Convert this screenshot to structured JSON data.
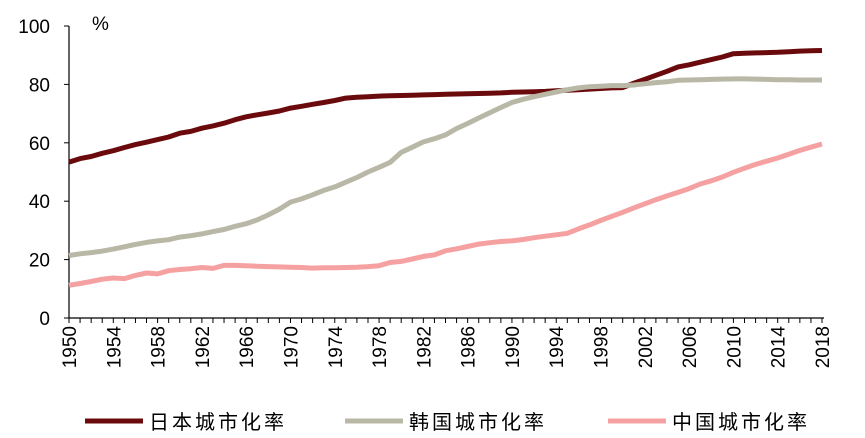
{
  "chart_data": {
    "type": "line",
    "unit_label": "%",
    "ylim": [
      0,
      100
    ],
    "yticks": [
      0,
      20,
      40,
      60,
      80,
      100
    ],
    "xlim": [
      1950,
      2018
    ],
    "xticks": [
      1950,
      1954,
      1958,
      1962,
      1966,
      1970,
      1974,
      1978,
      1982,
      1986,
      1990,
      1994,
      1998,
      2002,
      2006,
      2010,
      2014,
      2018
    ],
    "grid": false,
    "legend_position": "bottom",
    "series": [
      {
        "name": "日本城市化率",
        "color": "#6b0a0c",
        "x": [
          1950,
          1951,
          1952,
          1953,
          1954,
          1955,
          1956,
          1957,
          1958,
          1959,
          1960,
          1961,
          1962,
          1963,
          1964,
          1965,
          1966,
          1967,
          1968,
          1969,
          1970,
          1971,
          1972,
          1973,
          1974,
          1975,
          1976,
          1977,
          1978,
          1979,
          1980,
          1981,
          1982,
          1983,
          1984,
          1985,
          1986,
          1987,
          1988,
          1989,
          1990,
          1991,
          1992,
          1993,
          1994,
          1995,
          1996,
          1997,
          1998,
          1999,
          2000,
          2001,
          2002,
          2003,
          2004,
          2005,
          2006,
          2007,
          2008,
          2009,
          2010,
          2011,
          2012,
          2013,
          2014,
          2015,
          2016,
          2017,
          2018
        ],
        "values": [
          53.4,
          54.6,
          55.3,
          56.4,
          57.3,
          58.4,
          59.4,
          60.2,
          61.1,
          62.0,
          63.3,
          63.9,
          65.0,
          65.8,
          66.7,
          67.9,
          68.9,
          69.6,
          70.2,
          70.9,
          71.9,
          72.5,
          73.2,
          73.8,
          74.5,
          75.3,
          75.6,
          75.8,
          76.0,
          76.1,
          76.2,
          76.3,
          76.4,
          76.5,
          76.6,
          76.7,
          76.8,
          76.9,
          77.0,
          77.1,
          77.3,
          77.4,
          77.5,
          77.6,
          77.8,
          78.0,
          78.2,
          78.4,
          78.6,
          78.8,
          78.9,
          80.4,
          81.7,
          83.1,
          84.5,
          86.0,
          86.7,
          87.6,
          88.5,
          89.4,
          90.5,
          90.7,
          90.8,
          90.9,
          91.0,
          91.2,
          91.4,
          91.5,
          91.6
        ]
      },
      {
        "name": "韩国城市化率",
        "color": "#b9b8a6",
        "x": [
          1950,
          1951,
          1952,
          1953,
          1954,
          1955,
          1956,
          1957,
          1958,
          1959,
          1960,
          1961,
          1962,
          1963,
          1964,
          1965,
          1966,
          1967,
          1968,
          1969,
          1970,
          1971,
          1972,
          1973,
          1974,
          1975,
          1976,
          1977,
          1978,
          1979,
          1980,
          1981,
          1982,
          1983,
          1984,
          1985,
          1986,
          1987,
          1988,
          1989,
          1990,
          1991,
          1992,
          1993,
          1994,
          1995,
          1996,
          1997,
          1998,
          1999,
          2000,
          2001,
          2002,
          2003,
          2004,
          2005,
          2006,
          2007,
          2008,
          2009,
          2010,
          2011,
          2012,
          2013,
          2014,
          2015,
          2016,
          2017,
          2018
        ],
        "values": [
          21.4,
          22.0,
          22.4,
          22.9,
          23.6,
          24.4,
          25.2,
          25.9,
          26.4,
          26.8,
          27.7,
          28.2,
          28.8,
          29.6,
          30.3,
          31.4,
          32.3,
          33.6,
          35.3,
          37.3,
          39.7,
          40.8,
          42.2,
          43.7,
          44.9,
          46.5,
          48.1,
          50.0,
          51.6,
          53.3,
          56.7,
          58.5,
          60.3,
          61.4,
          62.7,
          64.9,
          66.6,
          68.5,
          70.3,
          72.1,
          73.8,
          74.9,
          75.8,
          76.6,
          77.4,
          78.2,
          78.8,
          79.2,
          79.4,
          79.6,
          79.6,
          79.8,
          80.2,
          80.6,
          80.9,
          81.4,
          81.5,
          81.6,
          81.7,
          81.8,
          81.9,
          81.9,
          81.8,
          81.7,
          81.6,
          81.6,
          81.5,
          81.5,
          81.5
        ]
      },
      {
        "name": "中国城市化率",
        "color": "#f5a1a1",
        "x": [
          1950,
          1951,
          1952,
          1953,
          1954,
          1955,
          1956,
          1957,
          1958,
          1959,
          1960,
          1961,
          1962,
          1963,
          1964,
          1965,
          1966,
          1967,
          1968,
          1969,
          1970,
          1971,
          1972,
          1973,
          1974,
          1975,
          1976,
          1977,
          1978,
          1979,
          1980,
          1981,
          1982,
          1983,
          1984,
          1985,
          1986,
          1987,
          1988,
          1989,
          1990,
          1991,
          1992,
          1993,
          1994,
          1995,
          1996,
          1997,
          1998,
          1999,
          2000,
          2001,
          2002,
          2003,
          2004,
          2005,
          2006,
          2007,
          2008,
          2009,
          2010,
          2011,
          2012,
          2013,
          2014,
          2015,
          2016,
          2017,
          2018
        ],
        "values": [
          11.2,
          11.8,
          12.5,
          13.3,
          13.7,
          13.5,
          14.6,
          15.4,
          15.1,
          16.2,
          16.6,
          16.9,
          17.3,
          17.0,
          18.0,
          18.0,
          17.9,
          17.7,
          17.6,
          17.5,
          17.4,
          17.3,
          17.1,
          17.2,
          17.2,
          17.3,
          17.4,
          17.6,
          17.9,
          19.0,
          19.4,
          20.2,
          21.1,
          21.6,
          23.0,
          23.7,
          24.5,
          25.3,
          25.8,
          26.2,
          26.4,
          26.9,
          27.5,
          28.0,
          28.5,
          29.0,
          30.5,
          31.9,
          33.4,
          34.8,
          36.2,
          37.7,
          39.1,
          40.5,
          41.8,
          43.0,
          44.3,
          45.9,
          47.0,
          48.3,
          49.9,
          51.3,
          52.6,
          53.7,
          54.8,
          56.1,
          57.4,
          58.5,
          59.6
        ]
      }
    ]
  }
}
